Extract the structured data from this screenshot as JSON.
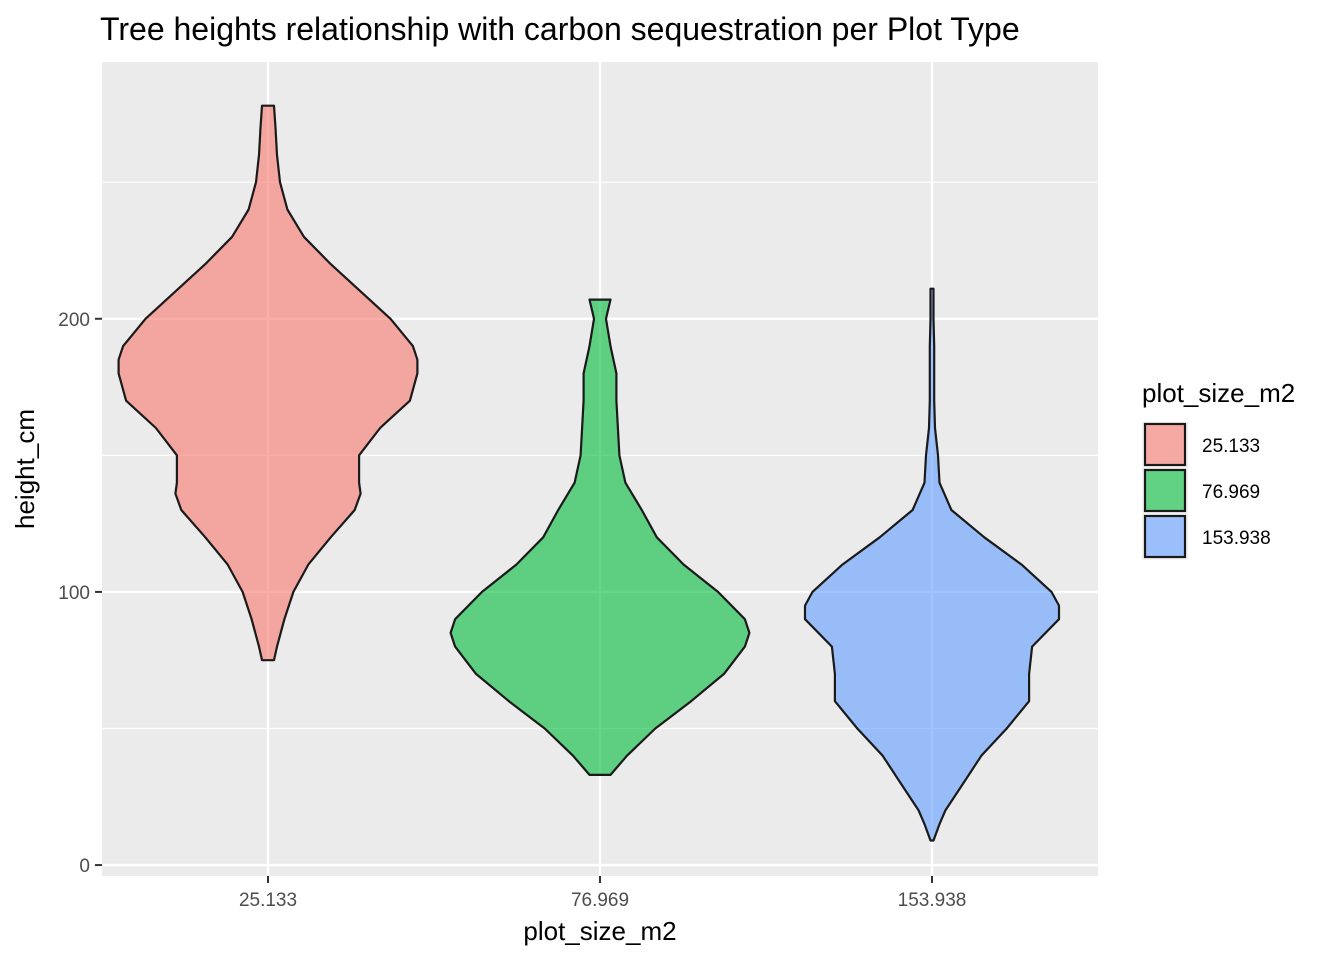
{
  "chart_data": {
    "type": "violin",
    "title": "Tree heights relationship with carbon sequestration per Plot Type",
    "xlabel": "plot_size_m2",
    "ylabel": "height_cm",
    "ylim": [
      -4,
      294
    ],
    "yticks": [
      0,
      100,
      200
    ],
    "grid": true,
    "legend": {
      "title": "plot_size_m2",
      "position": "right"
    },
    "categories": [
      "25.133",
      "76.969",
      "153.938"
    ],
    "series": [
      {
        "name": "25.133",
        "color": "#F8766D",
        "range": [
          75,
          278
        ],
        "density": [
          [
            75,
            0.04
          ],
          [
            80,
            0.06
          ],
          [
            90,
            0.11
          ],
          [
            100,
            0.17
          ],
          [
            110,
            0.27
          ],
          [
            120,
            0.42
          ],
          [
            130,
            0.58
          ],
          [
            136,
            0.62
          ],
          [
            140,
            0.61
          ],
          [
            150,
            0.61
          ],
          [
            160,
            0.75
          ],
          [
            170,
            0.95
          ],
          [
            180,
            1.0
          ],
          [
            185,
            1.0
          ],
          [
            190,
            0.97
          ],
          [
            200,
            0.82
          ],
          [
            210,
            0.62
          ],
          [
            220,
            0.42
          ],
          [
            230,
            0.24
          ],
          [
            240,
            0.13
          ],
          [
            250,
            0.08
          ],
          [
            260,
            0.06
          ],
          [
            270,
            0.05
          ],
          [
            278,
            0.04
          ]
        ]
      },
      {
        "name": "76.969",
        "color": "#00BA38",
        "range": [
          33,
          207
        ],
        "density": [
          [
            33,
            0.07
          ],
          [
            40,
            0.18
          ],
          [
            50,
            0.37
          ],
          [
            60,
            0.61
          ],
          [
            70,
            0.83
          ],
          [
            80,
            0.97
          ],
          [
            85,
            1.0
          ],
          [
            90,
            0.97
          ],
          [
            100,
            0.79
          ],
          [
            110,
            0.56
          ],
          [
            120,
            0.38
          ],
          [
            130,
            0.28
          ],
          [
            140,
            0.17
          ],
          [
            150,
            0.13
          ],
          [
            160,
            0.12
          ],
          [
            170,
            0.11
          ],
          [
            180,
            0.11
          ],
          [
            190,
            0.07
          ],
          [
            200,
            0.04
          ],
          [
            207,
            0.07
          ]
        ]
      },
      {
        "name": "153.938",
        "color": "#619CFF",
        "range": [
          9,
          211
        ],
        "density": [
          [
            9,
            0.01
          ],
          [
            15,
            0.05
          ],
          [
            20,
            0.09
          ],
          [
            30,
            0.21
          ],
          [
            40,
            0.33
          ],
          [
            50,
            0.5
          ],
          [
            60,
            0.65
          ],
          [
            70,
            0.65
          ],
          [
            80,
            0.67
          ],
          [
            90,
            0.85
          ],
          [
            95,
            0.85
          ],
          [
            100,
            0.8
          ],
          [
            110,
            0.6
          ],
          [
            120,
            0.35
          ],
          [
            130,
            0.13
          ],
          [
            140,
            0.05
          ],
          [
            150,
            0.04
          ],
          [
            160,
            0.02
          ],
          [
            170,
            0.015
          ],
          [
            180,
            0.015
          ],
          [
            190,
            0.015
          ],
          [
            200,
            0.01
          ],
          [
            211,
            0.01
          ]
        ]
      }
    ]
  }
}
